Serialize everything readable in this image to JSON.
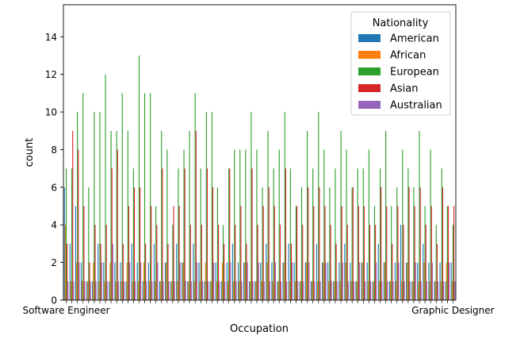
{
  "chart_data": {
    "type": "bar",
    "title": "",
    "xlabel": "Occupation",
    "ylabel": "count",
    "ylim": [
      0,
      15.7
    ],
    "yticks": [
      0,
      2,
      4,
      6,
      8,
      10,
      12,
      14
    ],
    "grid": false,
    "legend": {
      "title": "Nationality",
      "placement": "upper right"
    },
    "first_category_label": "Software Engineer",
    "last_category_label": "Graphic Designer",
    "series": [
      {
        "name": "American",
        "color": "#1f77b4",
        "values": [
          6,
          3,
          5,
          2,
          1,
          1,
          3,
          2,
          1,
          2,
          2,
          1,
          3,
          2,
          1,
          2,
          3,
          1,
          2,
          1,
          3,
          2,
          1,
          3,
          2,
          1,
          1,
          2,
          1,
          2,
          3,
          2,
          2,
          1,
          1,
          2,
          3,
          2,
          1,
          2,
          3,
          2,
          1,
          2,
          1,
          3,
          2,
          2,
          1,
          2,
          3,
          2,
          1,
          2,
          2,
          1,
          3,
          2,
          1,
          2,
          4,
          2,
          1,
          2,
          3,
          2,
          1,
          2,
          1,
          2
        ]
      },
      {
        "name": "African",
        "color": "#ff7f0e",
        "values": [
          4,
          1,
          2,
          1,
          1,
          2,
          1,
          1,
          2,
          1,
          1,
          2,
          1,
          1,
          2,
          1,
          1,
          1,
          2,
          1,
          1,
          2,
          1,
          1,
          1,
          2,
          1,
          1,
          2,
          1,
          1,
          1,
          2,
          1,
          1,
          1,
          2,
          1,
          1,
          2,
          1,
          1,
          1,
          2,
          1,
          1,
          2,
          1,
          1,
          1,
          2,
          1,
          1,
          2,
          1,
          1,
          1,
          2,
          1,
          1,
          1,
          2,
          1,
          1,
          2,
          1,
          1,
          1,
          2,
          1
        ]
      },
      {
        "name": "European",
        "color": "#2ca02c",
        "values": [
          7,
          7,
          10,
          11,
          6,
          10,
          10,
          12,
          9,
          9,
          11,
          9,
          7,
          13,
          11,
          11,
          5,
          9,
          8,
          4,
          7,
          8,
          9,
          11,
          7,
          10,
          10,
          6,
          4,
          7,
          8,
          8,
          8,
          10,
          8,
          6,
          9,
          7,
          8,
          10,
          7,
          5,
          6,
          9,
          7,
          10,
          8,
          6,
          7,
          9,
          8,
          6,
          7,
          7,
          8,
          5,
          7,
          9,
          5,
          6,
          8,
          7,
          6,
          9,
          5,
          8,
          4,
          7,
          5,
          4
        ]
      },
      {
        "name": "Asian",
        "color": "#d62728",
        "values": [
          3,
          9,
          8,
          5,
          2,
          4,
          3,
          4,
          7,
          8,
          3,
          5,
          6,
          6,
          3,
          5,
          4,
          7,
          3,
          5,
          5,
          7,
          4,
          9,
          4,
          7,
          6,
          4,
          3,
          7,
          4,
          5,
          3,
          7,
          4,
          5,
          6,
          5,
          4,
          7,
          3,
          5,
          4,
          6,
          5,
          6,
          5,
          4,
          3,
          5,
          4,
          6,
          5,
          5,
          4,
          4,
          6,
          5,
          3,
          5,
          4,
          6,
          5,
          6,
          4,
          5,
          3,
          6,
          5,
          5
        ]
      },
      {
        "name": "Australian",
        "color": "#9467bd",
        "values": [
          1,
          1,
          2,
          1,
          1,
          1,
          2,
          1,
          3,
          1,
          1,
          2,
          1,
          2,
          1,
          1,
          2,
          1,
          1,
          1,
          2,
          1,
          1,
          2,
          1,
          1,
          2,
          1,
          1,
          2,
          1,
          1,
          2,
          1,
          2,
          1,
          1,
          2,
          1,
          1,
          2,
          1,
          1,
          2,
          1,
          1,
          2,
          1,
          1,
          2,
          1,
          1,
          2,
          1,
          1,
          2,
          1,
          1,
          1,
          2,
          1,
          1,
          2,
          1,
          1,
          2,
          1,
          1,
          2,
          1
        ]
      }
    ]
  }
}
